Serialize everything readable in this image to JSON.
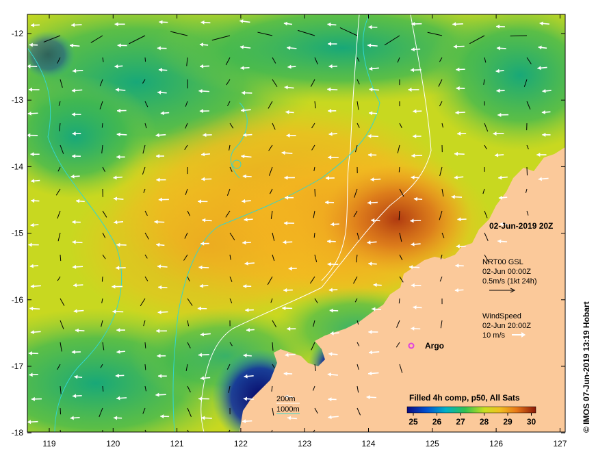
{
  "map": {
    "date_label": "02-Jun-2019 20Z",
    "credit": "© IMOS 07-Jun-2019 13:19 Hobart",
    "x_ticks": [
      "119",
      "120",
      "121",
      "122",
      "123",
      "124",
      "125",
      "126",
      "127"
    ],
    "y_ticks": [
      "-12",
      "-13",
      "-14",
      "-15",
      "-16",
      "-17",
      "-18"
    ],
    "legend": {
      "currents_title": "NRT00 GSL",
      "currents_time": "02-Jun 00:00Z",
      "currents_scale": "0.5m/s (1kt 24h)",
      "wind_title": "WindSpeed",
      "wind_time": "02-Jun 20:00Z",
      "wind_scale": "10 m/s",
      "argo_label": "Argo",
      "contour_200": "200m",
      "contour_1000": "1000m",
      "sst_title": "Filled 4h comp, p50, All Sats",
      "sst_ticks": [
        "25",
        "26",
        "27",
        "28",
        "29",
        "30"
      ]
    },
    "colors": {
      "land": "#fbc99a",
      "warm": "#d45a10",
      "mid": "#f0c020",
      "cool": "#22aa55",
      "cold": "#08107a",
      "contour_200": "#ffffff",
      "contour_1000": "#33d6cf",
      "argo": "#e040e0"
    }
  }
}
